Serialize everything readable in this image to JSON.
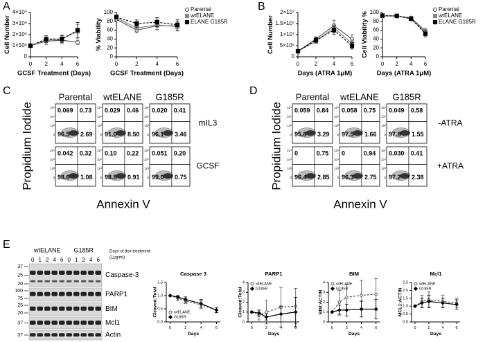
{
  "panel_labels": [
    "A",
    "B",
    "C",
    "D",
    "E"
  ],
  "chart_data": [
    {
      "type": "line",
      "y_label": "Cell Number",
      "x_label": "GCSF Treatment (Days)",
      "x": [
        0,
        2,
        4,
        6
      ],
      "xlim": [
        0,
        6
      ],
      "xticks": [
        0,
        2,
        4,
        6
      ],
      "ylim": [
        0,
        4000000
      ],
      "yticks": [
        0,
        {
          "value": 1000000,
          "label": "1×10⁶"
        },
        {
          "value": 2000000,
          "label": "2×10⁶"
        },
        {
          "value": 3000000,
          "label": "3×10⁶"
        },
        {
          "value": 4000000,
          "label": "4×10⁶"
        }
      ],
      "series": [
        {
          "color": "#555",
          "marker": "circle-open",
          "dash": false,
          "values": [
            1000000,
            1400000,
            1500000,
            1300000
          ],
          "errors": [
            0,
            300000,
            300000,
            200000
          ]
        },
        {
          "color": "#888",
          "marker": "square",
          "dash": false,
          "values": [
            1000000,
            1500000,
            1600000,
            2300000
          ],
          "errors": [
            0,
            200000,
            400000,
            600000
          ]
        },
        {
          "color": "#000",
          "marker": "square",
          "dash": true,
          "values": [
            1000000,
            1600000,
            1600000,
            2400000
          ],
          "errors": [
            0,
            300000,
            300000,
            700000
          ]
        }
      ]
    },
    {
      "type": "line",
      "y_label": "% Viability",
      "x_label": "GCSF Treatment (Days)",
      "x": [
        0,
        2,
        4,
        6
      ],
      "xlim": [
        0,
        6
      ],
      "xticks": [
        0,
        2,
        4,
        6
      ],
      "ylim": [
        0,
        100
      ],
      "yticks": [
        0,
        20,
        40,
        60,
        80,
        100
      ],
      "legend": "right",
      "series": [
        {
          "name": "Parental",
          "color": "#555",
          "marker": "circle-open",
          "dash": false,
          "values": [
            85,
            60,
            70,
            70
          ],
          "errors": [
            3,
            6,
            8,
            10
          ]
        },
        {
          "name": "wtELANE",
          "color": "#888",
          "marker": "square",
          "dash": false,
          "values": [
            88,
            65,
            72,
            68
          ],
          "errors": [
            3,
            5,
            12,
            10
          ]
        },
        {
          "name": "ELANE G185R",
          "color": "#000",
          "marker": "square",
          "dash": true,
          "values": [
            90,
            75,
            78,
            72
          ],
          "errors": [
            4,
            8,
            10,
            12
          ]
        }
      ]
    },
    {
      "type": "line",
      "y_label": "Cell Number",
      "x_label": "Days (ATRA 1μM)",
      "x": [
        0,
        2,
        4,
        6
      ],
      "xlim": [
        0,
        6
      ],
      "xticks": [
        0,
        2,
        4,
        6
      ],
      "ylim": [
        0,
        20000000
      ],
      "yticks": [
        0,
        {
          "value": 5000000,
          "label": "5×10⁶"
        },
        {
          "value": 10000000,
          "label": "1×10⁷"
        },
        {
          "value": 15000000,
          "label": "1.5×10⁷"
        },
        {
          "value": 20000000,
          "label": "2×10⁷"
        }
      ],
      "series": [
        {
          "color": "#555",
          "marker": "circle-open",
          "dash": false,
          "values": [
            2500000,
            8000000,
            14000000,
            8000000
          ],
          "errors": [
            500000,
            1000000,
            2500000,
            2000000
          ]
        },
        {
          "color": "#888",
          "marker": "square",
          "dash": false,
          "values": [
            2500000,
            7000000,
            13000000,
            6000000
          ],
          "errors": [
            500000,
            1000000,
            2000000,
            2000000
          ]
        },
        {
          "color": "#000",
          "marker": "square",
          "dash": true,
          "values": [
            2500000,
            7500000,
            12000000,
            5000000
          ],
          "errors": [
            500000,
            1000000,
            2000000,
            1500000
          ]
        }
      ]
    },
    {
      "type": "line",
      "y_label": "Cell Viability %",
      "x_label": "Days (ATRA 1μM)",
      "x": [
        0,
        2,
        4,
        6
      ],
      "xlim": [
        0,
        6
      ],
      "xticks": [
        0,
        2,
        4,
        6
      ],
      "ylim": [
        0,
        100
      ],
      "yticks": [
        0,
        20,
        40,
        60,
        80,
        100
      ],
      "legend": "right",
      "series": [
        {
          "name": "Parental",
          "color": "#555",
          "marker": "circle-open",
          "dash": false,
          "values": [
            92,
            92,
            88,
            58
          ],
          "errors": [
            2,
            2,
            3,
            6
          ]
        },
        {
          "name": "wtELANE",
          "color": "#888",
          "marker": "square",
          "dash": false,
          "values": [
            92,
            93,
            85,
            55
          ],
          "errors": [
            2,
            2,
            3,
            6
          ]
        },
        {
          "name": "ELANE G185R",
          "color": "#000",
          "marker": "square",
          "dash": true,
          "values": [
            93,
            92,
            86,
            52
          ],
          "errors": [
            2,
            2,
            3,
            7
          ]
        }
      ]
    },
    {
      "type": "line",
      "title": "Caspase 3",
      "y_label": "Cleaved:Total",
      "x_label": "Days",
      "x": [
        0,
        1,
        2,
        4,
        6
      ],
      "xlim": [
        -0.5,
        6.5
      ],
      "xticks": [
        0,
        2,
        4,
        6
      ],
      "ylim": [
        0,
        1.5
      ],
      "yticks": [
        {
          "value": 0,
          "label": "0.0"
        },
        {
          "value": 0.5,
          "label": "0.5"
        },
        {
          "value": 1,
          "label": "1.0"
        },
        {
          "value": 1.5,
          "label": "1.5"
        }
      ],
      "legend": "lower left",
      "series": [
        {
          "name": "wtELANE",
          "color": "#555",
          "marker": "circle-open",
          "dash": true,
          "values": [
            1.0,
            0.9,
            0.8,
            0.65,
            0.45
          ],
          "errors": [
            0,
            0.1,
            0.1,
            0.15,
            0.1
          ]
        },
        {
          "name": "G185R",
          "color": "#000",
          "marker": "diamond",
          "dash": false,
          "values": [
            1.0,
            0.95,
            0.85,
            0.7,
            0.45
          ],
          "errors": [
            0,
            0.05,
            0.1,
            0.15,
            0.1
          ]
        }
      ]
    },
    {
      "type": "line",
      "title": "PARP1",
      "y_label": "Cleaved:Total",
      "x_label": "Days",
      "x": [
        0,
        1,
        2,
        4,
        6
      ],
      "xlim": [
        -0.5,
        6.5
      ],
      "xticks": [
        0,
        2,
        4,
        6
      ],
      "ylim": [
        0,
        4
      ],
      "yticks": [
        0,
        1,
        2,
        3,
        4
      ],
      "legend": "upper left",
      "series": [
        {
          "name": "wtELANE",
          "color": "#555",
          "marker": "circle-open",
          "dash": true,
          "values": [
            1,
            0.7,
            1.0,
            1.5,
            1.6
          ],
          "errors": [
            0,
            0.5,
            1.2,
            2.0,
            1.8
          ]
        },
        {
          "name": "G185R",
          "color": "#000",
          "marker": "diamond",
          "dash": false,
          "values": [
            1,
            0.9,
            0.5,
            0.8,
            1.0
          ],
          "errors": [
            0,
            0.3,
            0.3,
            0.8,
            1.5
          ]
        }
      ]
    },
    {
      "type": "line",
      "title": "BIM",
      "y_label": "BIM:ACTIN",
      "x_label": "Days",
      "x": [
        0,
        1,
        2,
        4,
        6
      ],
      "xlim": [
        -0.5,
        6.5
      ],
      "xticks": [
        0,
        2,
        4,
        6
      ],
      "ylim": [
        0,
        4
      ],
      "yticks": [
        0,
        1,
        2,
        3,
        4
      ],
      "legend": "upper left",
      "series": [
        {
          "name": "wtELANE",
          "color": "#555",
          "marker": "circle-open",
          "dash": true,
          "values": [
            1,
            2.0,
            2.5,
            2.7,
            2.8
          ],
          "errors": [
            0,
            1.2,
            1.3,
            1.5,
            1.6
          ]
        },
        {
          "name": "G185R",
          "color": "#000",
          "marker": "diamond",
          "dash": false,
          "values": [
            1,
            1.2,
            1.2,
            1.3,
            1.3
          ],
          "errors": [
            0,
            0.5,
            0.6,
            0.8,
            1.0
          ]
        }
      ]
    },
    {
      "type": "line",
      "title": "Mcl1",
      "y_label": "MCL1:ACTIN",
      "x_label": "Days",
      "x": [
        0,
        1,
        2,
        4,
        6
      ],
      "xlim": [
        -0.5,
        6.5
      ],
      "xticks": [
        0,
        2,
        4,
        6
      ],
      "ylim": [
        0,
        2.5
      ],
      "yticks": [
        {
          "value": 0,
          "label": "0.0"
        },
        {
          "value": 0.5,
          "label": "0.5"
        },
        {
          "value": 1,
          "label": "1.0"
        },
        {
          "value": 1.5,
          "label": "1.5"
        },
        {
          "value": 2,
          "label": "2.0"
        },
        {
          "value": 2.5,
          "label": "2.5"
        }
      ],
      "legend": "upper left",
      "series": [
        {
          "name": "wtELANE",
          "color": "#555",
          "marker": "circle-open",
          "dash": true,
          "values": [
            1,
            1.3,
            1.4,
            1.3,
            1.2
          ],
          "errors": [
            0,
            0.4,
            0.5,
            0.4,
            0.3
          ]
        },
        {
          "name": "G185R",
          "color": "#000",
          "marker": "diamond",
          "dash": false,
          "values": [
            1,
            1.2,
            1.3,
            1.2,
            1.1
          ],
          "errors": [
            0,
            0.3,
            0.4,
            0.3,
            0.3
          ]
        }
      ]
    }
  ],
  "flow_axis_ticks": [
    "10⁵",
    "10⁴",
    "10³",
    "0"
  ],
  "flow_panels": [
    {
      "y_label": "Propidium Iodide",
      "x_label": "Annexin V",
      "columns": [
        "Parental",
        "wtELANE",
        "G185R"
      ],
      "rows": [
        {
          "label": "mIL3",
          "quadrants": [
            [
              "0.069",
              "0.73",
              "96.5",
              "2.69"
            ],
            [
              "0.029",
              "0.46",
              "91.0",
              "8.50"
            ],
            [
              "0.020",
              "0.41",
              "96.1",
              "3.46"
            ]
          ]
        },
        {
          "label": "GCSF",
          "quadrants": [
            [
              "0.042",
              "0.32",
              "98.6",
              "1.08"
            ],
            [
              "0.10",
              "0.22",
              "98.8",
              "0.91"
            ],
            [
              "0.051",
              "0.20",
              "99.0",
              "0.75"
            ]
          ]
        }
      ]
    },
    {
      "y_label": "Propidium Iodide",
      "x_label": "Annexin V",
      "columns": [
        "Parental",
        "wtELANE",
        "G185R"
      ],
      "rows": [
        {
          "label": "-ATRA",
          "quadrants": [
            [
              "0.059",
              "0.84",
              "95.8",
              "3.29"
            ],
            [
              "0.058",
              "0.75",
              "97.5",
              "1.66"
            ],
            [
              "0.049",
              "0.58",
              "97.8",
              "1.55"
            ]
          ]
        },
        {
          "label": "+ATRA",
          "quadrants": [
            [
              "0",
              "0.75",
              "96.4",
              "2.85"
            ],
            [
              "0",
              "0.94",
              "96.3",
              "2.75"
            ],
            [
              "0.030",
              "0.41",
              "97.2",
              "2.38"
            ]
          ]
        }
      ]
    }
  ],
  "blot": {
    "groups": [
      "wtELANE",
      "G185R"
    ],
    "lanes": [
      "0",
      "1",
      "2",
      "4",
      "6"
    ],
    "treatment_note": [
      "Days of dox treatment",
      "(1μg/ml)"
    ],
    "rows": [
      {
        "label": "Caspase-3",
        "markers": [
          "37",
          "25",
          "20"
        ]
      },
      {
        "label": "PARP1",
        "markers": [
          "100",
          "75"
        ]
      },
      {
        "label": "BIM",
        "markers": [
          "25",
          "20"
        ]
      },
      {
        "label": "Mcl1",
        "markers": [
          "37"
        ]
      },
      {
        "label": "Actin",
        "markers": [
          "37"
        ]
      }
    ]
  }
}
